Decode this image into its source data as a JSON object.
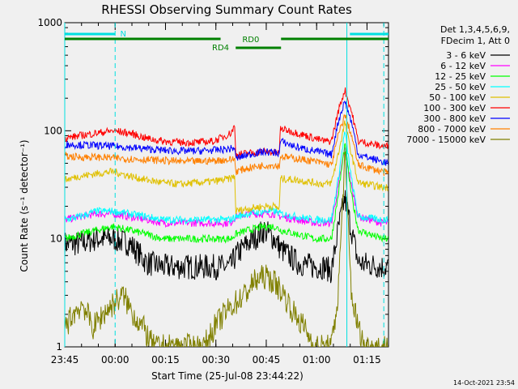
{
  "chart_data": {
    "type": "line",
    "title": "RHESSI Observing Summary Count Rates",
    "xlabel": "Start Time (25-Jul-08 23:44:22)",
    "ylabel": "Count Rate (s⁻¹ detector⁻¹)",
    "yscale": "log",
    "ylim": [
      1,
      1000
    ],
    "xlim_minutes": [
      0.6,
      97
    ],
    "x_ticks": [
      {
        "min": 0.6,
        "label": "23:45"
      },
      {
        "min": 15.6,
        "label": "00:00"
      },
      {
        "min": 30.6,
        "label": "00:15"
      },
      {
        "min": 45.6,
        "label": "00:30"
      },
      {
        "min": 60.6,
        "label": "00:45"
      },
      {
        "min": 75.6,
        "label": "01:00"
      },
      {
        "min": 90.6,
        "label": "01:15"
      }
    ],
    "y_ticks": [
      {
        "value": 1,
        "label": "1"
      },
      {
        "value": 10,
        "label": "10"
      },
      {
        "value": 100,
        "label": "100"
      },
      {
        "value": 1000,
        "label": "1000"
      }
    ],
    "legend_header": [
      "Det 1,3,4,5,6,9,",
      "FDecim 1, Att 0"
    ],
    "series": [
      {
        "name": "3 - 6 keV",
        "color": "#000000",
        "points": [
          [
            0.6,
            9
          ],
          [
            5,
            9
          ],
          [
            10,
            10
          ],
          [
            15,
            10
          ],
          [
            20,
            9
          ],
          [
            25,
            6
          ],
          [
            30,
            5.5
          ],
          [
            35,
            5.5
          ],
          [
            40,
            5.5
          ],
          [
            45,
            5.5
          ],
          [
            50,
            5.5
          ],
          [
            51.5,
            7
          ],
          [
            55,
            9
          ],
          [
            60,
            12
          ],
          [
            63,
            10
          ],
          [
            65,
            8
          ],
          [
            70,
            6
          ],
          [
            75,
            5.5
          ],
          [
            78,
            5.5
          ],
          [
            80,
            5
          ],
          [
            82,
            12
          ],
          [
            84,
            24
          ],
          [
            86,
            12
          ],
          [
            88,
            6
          ],
          [
            95,
            5.5
          ],
          [
            97,
            5.5
          ]
        ]
      },
      {
        "name": "6 - 12 keV",
        "color": "#ff00ff",
        "points": [
          [
            0.6,
            15
          ],
          [
            5,
            16
          ],
          [
            10,
            17
          ],
          [
            15,
            17
          ],
          [
            20,
            16
          ],
          [
            25,
            15
          ],
          [
            30,
            14
          ],
          [
            35,
            14
          ],
          [
            40,
            14
          ],
          [
            45,
            14
          ],
          [
            50,
            14
          ],
          [
            51.5,
            16
          ],
          [
            55,
            17
          ],
          [
            60,
            17
          ],
          [
            63,
            17
          ],
          [
            65,
            16
          ],
          [
            70,
            15
          ],
          [
            75,
            14
          ],
          [
            78,
            14
          ],
          [
            80,
            14
          ],
          [
            82,
            30
          ],
          [
            84,
            70
          ],
          [
            86,
            30
          ],
          [
            88,
            16
          ],
          [
            95,
            14
          ],
          [
            97,
            14
          ]
        ]
      },
      {
        "name": "12 - 25 keV",
        "color": "#00ff00",
        "points": [
          [
            0.6,
            10
          ],
          [
            5,
            11
          ],
          [
            10,
            12
          ],
          [
            15,
            13
          ],
          [
            20,
            12
          ],
          [
            25,
            11
          ],
          [
            30,
            10
          ],
          [
            35,
            10
          ],
          [
            40,
            10
          ],
          [
            45,
            10
          ],
          [
            50,
            10
          ],
          [
            51.5,
            11
          ],
          [
            55,
            12
          ],
          [
            60,
            13
          ],
          [
            63,
            13
          ],
          [
            65,
            12
          ],
          [
            70,
            11
          ],
          [
            75,
            10
          ],
          [
            78,
            10
          ],
          [
            80,
            10
          ],
          [
            82,
            25
          ],
          [
            84,
            75
          ],
          [
            86,
            25
          ],
          [
            88,
            12
          ],
          [
            95,
            10
          ],
          [
            97,
            10
          ]
        ]
      },
      {
        "name": "25 - 50 keV",
        "color": "#00ffff",
        "points": [
          [
            0.6,
            15
          ],
          [
            5,
            16
          ],
          [
            10,
            18
          ],
          [
            15,
            18
          ],
          [
            20,
            17
          ],
          [
            25,
            16
          ],
          [
            30,
            15
          ],
          [
            35,
            15
          ],
          [
            40,
            15
          ],
          [
            45,
            15
          ],
          [
            50,
            15
          ],
          [
            51.5,
            16
          ],
          [
            55,
            17
          ],
          [
            60,
            18
          ],
          [
            63,
            18
          ],
          [
            65,
            17
          ],
          [
            70,
            16
          ],
          [
            75,
            15
          ],
          [
            78,
            15
          ],
          [
            80,
            15
          ],
          [
            82,
            35
          ],
          [
            84,
            100
          ],
          [
            86,
            35
          ],
          [
            88,
            16
          ],
          [
            95,
            15
          ],
          [
            97,
            15
          ]
        ]
      },
      {
        "name": "50 - 100 keV",
        "color": "#e0c000",
        "points": [
          [
            0.6,
            35
          ],
          [
            5,
            38
          ],
          [
            10,
            40
          ],
          [
            15,
            42
          ],
          [
            20,
            38
          ],
          [
            25,
            35
          ],
          [
            30,
            33
          ],
          [
            35,
            32
          ],
          [
            40,
            33
          ],
          [
            45,
            34
          ],
          [
            50,
            36
          ],
          [
            51.2,
            38
          ],
          [
            51.5,
            18
          ],
          [
            55,
            19
          ],
          [
            60,
            20
          ],
          [
            63,
            20
          ],
          [
            64.5,
            19
          ],
          [
            64.8,
            36
          ],
          [
            70,
            35
          ],
          [
            75,
            33
          ],
          [
            78,
            32
          ],
          [
            80,
            33
          ],
          [
            82,
            60
          ],
          [
            84,
            120
          ],
          [
            86,
            60
          ],
          [
            88,
            33
          ],
          [
            95,
            30
          ],
          [
            97,
            30
          ]
        ]
      },
      {
        "name": "100 - 300 keV",
        "color": "#ff0000",
        "points": [
          [
            0.6,
            85
          ],
          [
            5,
            90
          ],
          [
            10,
            95
          ],
          [
            15,
            100
          ],
          [
            20,
            95
          ],
          [
            25,
            85
          ],
          [
            30,
            80
          ],
          [
            35,
            78
          ],
          [
            40,
            78
          ],
          [
            45,
            80
          ],
          [
            50,
            95
          ],
          [
            51.2,
            110
          ],
          [
            51.5,
            60
          ],
          [
            55,
            62
          ],
          [
            60,
            64
          ],
          [
            63,
            63
          ],
          [
            64.5,
            62
          ],
          [
            64.8,
            105
          ],
          [
            70,
            95
          ],
          [
            75,
            85
          ],
          [
            78,
            80
          ],
          [
            80,
            80
          ],
          [
            82,
            150
          ],
          [
            84,
            240
          ],
          [
            86,
            150
          ],
          [
            88,
            80
          ],
          [
            95,
            72
          ],
          [
            97,
            72
          ]
        ]
      },
      {
        "name": "300 - 800 keV",
        "color": "#0000ff",
        "points": [
          [
            0.6,
            75
          ],
          [
            5,
            74
          ],
          [
            10,
            73
          ],
          [
            15,
            72
          ],
          [
            20,
            70
          ],
          [
            25,
            68
          ],
          [
            30,
            66
          ],
          [
            35,
            65
          ],
          [
            40,
            65
          ],
          [
            45,
            66
          ],
          [
            50,
            68
          ],
          [
            51.2,
            70
          ],
          [
            51.5,
            55
          ],
          [
            55,
            60
          ],
          [
            60,
            64
          ],
          [
            63,
            63
          ],
          [
            64.5,
            62
          ],
          [
            64.8,
            80
          ],
          [
            70,
            70
          ],
          [
            75,
            65
          ],
          [
            78,
            62
          ],
          [
            80,
            60
          ],
          [
            82,
            120
          ],
          [
            84,
            190
          ],
          [
            86,
            120
          ],
          [
            88,
            60
          ],
          [
            95,
            52
          ],
          [
            97,
            50
          ]
        ]
      },
      {
        "name": "800 - 7000 keV",
        "color": "#ff8000",
        "points": [
          [
            0.6,
            58
          ],
          [
            5,
            57
          ],
          [
            10,
            57
          ],
          [
            15,
            56
          ],
          [
            20,
            55
          ],
          [
            25,
            54
          ],
          [
            30,
            53
          ],
          [
            35,
            52
          ],
          [
            40,
            52
          ],
          [
            45,
            53
          ],
          [
            50,
            54
          ],
          [
            51.2,
            55
          ],
          [
            51.5,
            42
          ],
          [
            55,
            45
          ],
          [
            60,
            48
          ],
          [
            63,
            48
          ],
          [
            64.5,
            47
          ],
          [
            64.8,
            58
          ],
          [
            70,
            55
          ],
          [
            75,
            52
          ],
          [
            78,
            50
          ],
          [
            80,
            48
          ],
          [
            82,
            90
          ],
          [
            84,
            140
          ],
          [
            86,
            90
          ],
          [
            88,
            48
          ],
          [
            95,
            42
          ],
          [
            97,
            40
          ]
        ]
      },
      {
        "name": "7000 - 15000 keV",
        "color": "#808000",
        "points": [
          [
            0.6,
            1.5
          ],
          [
            3,
            2
          ],
          [
            6,
            2.5
          ],
          [
            9,
            1.5
          ],
          [
            12,
            2
          ],
          [
            15,
            2.5
          ],
          [
            18,
            3
          ],
          [
            21,
            2
          ],
          [
            24,
            1.5
          ],
          [
            27,
            1
          ],
          [
            30,
            1
          ],
          [
            33,
            1
          ],
          [
            36,
            1
          ],
          [
            39,
            1
          ],
          [
            42,
            1
          ],
          [
            45,
            1.5
          ],
          [
            48,
            2
          ],
          [
            51,
            2.5
          ],
          [
            54,
            3
          ],
          [
            57,
            4
          ],
          [
            60,
            4.5
          ],
          [
            63,
            4
          ],
          [
            66,
            3
          ],
          [
            69,
            2
          ],
          [
            72,
            1.5
          ],
          [
            75,
            1
          ],
          [
            78,
            1
          ],
          [
            80,
            1
          ],
          [
            82,
            3
          ],
          [
            84,
            60
          ],
          [
            86,
            3
          ],
          [
            88,
            1.5
          ],
          [
            90,
            1
          ],
          [
            93,
            1
          ],
          [
            97,
            1
          ]
        ]
      }
    ],
    "state_bars": {
      "saa_label": "N",
      "rd0_label": "RD0",
      "rd4_label": "RD4"
    },
    "vertical_markers_min": [
      0.6,
      15.6,
      84.6,
      95.6
    ]
  },
  "footer": {
    "date_stamp": "14-Oct-2021 23:54"
  }
}
